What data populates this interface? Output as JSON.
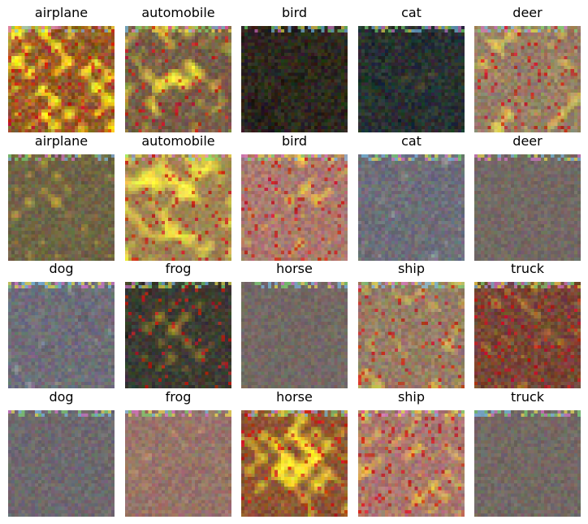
{
  "grid": {
    "rows": [
      {
        "labels": [
          "airplane",
          "automobile",
          "bird",
          "cat",
          "deer"
        ],
        "themes": [
          "fire-grid",
          "gold-blob",
          "dark-noise",
          "dark-teal",
          "gold-frame"
        ]
      },
      {
        "labels": [
          "airplane",
          "automobile",
          "bird",
          "cat",
          "deer"
        ],
        "themes": [
          "olive-blur",
          "gold-warm",
          "pink-fire",
          "blue-white",
          "muted-gray"
        ]
      },
      {
        "labels": [
          "dog",
          "frog",
          "horse",
          "ship",
          "truck"
        ],
        "themes": [
          "blue-white",
          "dark-center",
          "muted-gray",
          "gold-frame",
          "red-dark"
        ]
      },
      {
        "labels": [
          "dog",
          "frog",
          "horse",
          "ship",
          "truck"
        ],
        "themes": [
          "muted-blue",
          "pink-muted",
          "fire-center",
          "pink-fire",
          "muted-gray"
        ]
      }
    ]
  }
}
